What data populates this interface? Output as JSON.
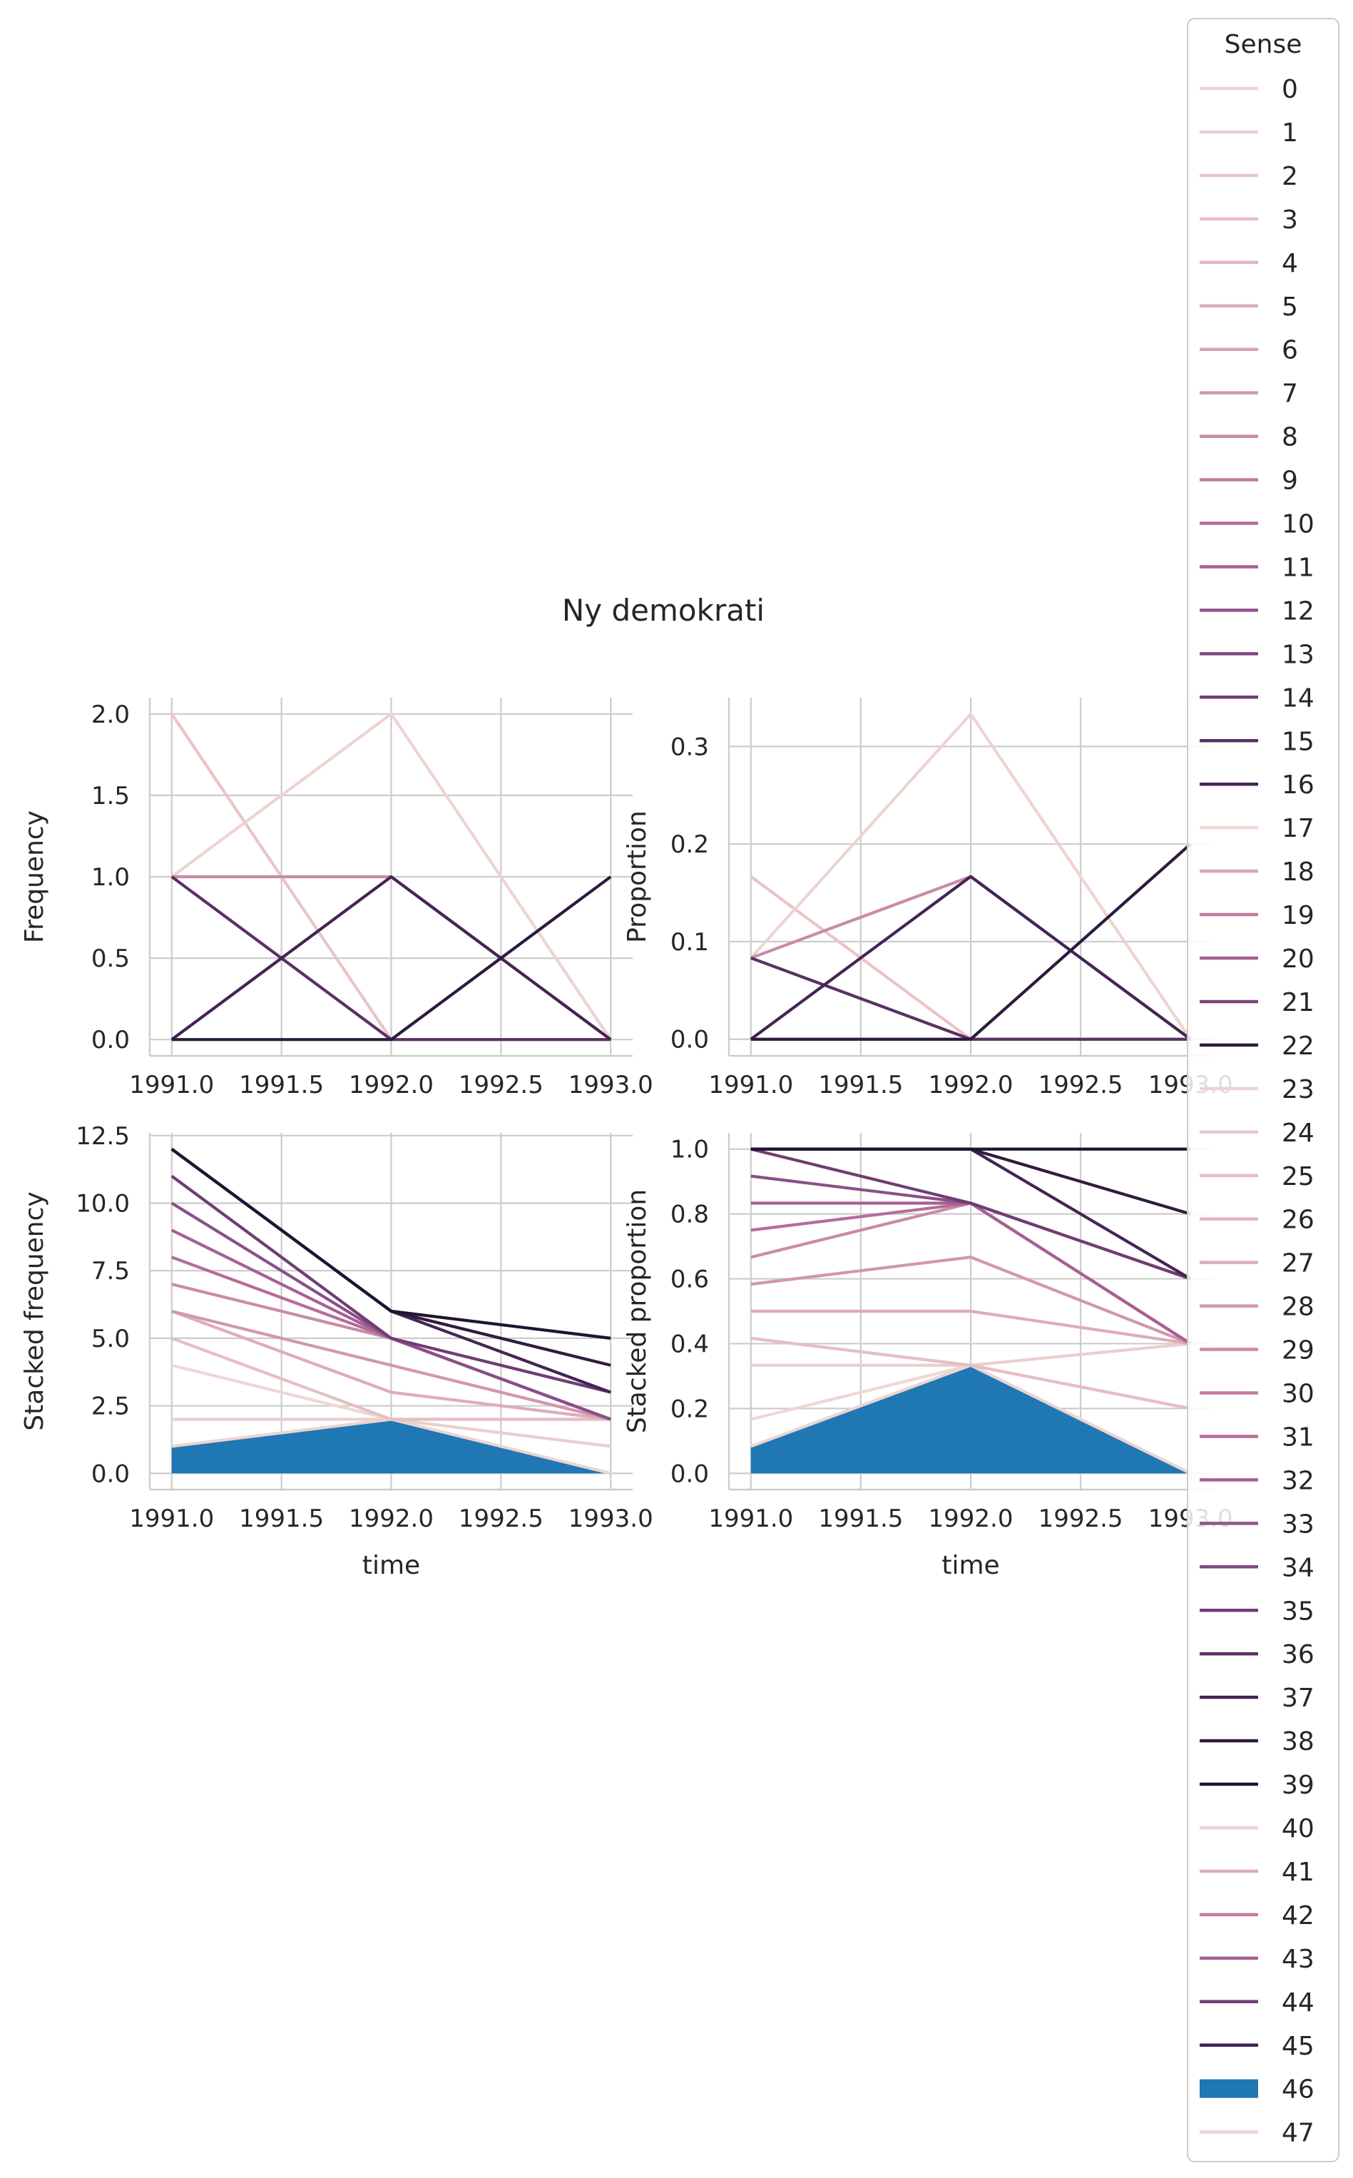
{
  "title": "Ny demokrati",
  "legend": {
    "title": "Sense",
    "entries": [
      "0",
      "1",
      "2",
      "3",
      "4",
      "5",
      "6",
      "7",
      "8",
      "9",
      "10",
      "11",
      "12",
      "13",
      "14",
      "15",
      "16",
      "17",
      "18",
      "19",
      "20",
      "21",
      "22",
      "23",
      "24",
      "25",
      "26",
      "27",
      "28",
      "29",
      "30",
      "31",
      "32",
      "33",
      "34",
      "35",
      "36",
      "37",
      "38",
      "39",
      "40",
      "41",
      "42",
      "43",
      "44",
      "45",
      "46",
      "47"
    ],
    "colors": [
      "#ecd4d0",
      "#ebcfcd",
      "#e9c8c8",
      "#e5bec3",
      "#e2b6bf",
      "#deacb9",
      "#d9a2b3",
      "#d396ad",
      "#cc8aa7",
      "#c27ca0",
      "#b56d99",
      "#a66093",
      "#95538a",
      "#83487f",
      "#6f3d73",
      "#5a3163",
      "#442552",
      "#efd7d3",
      "#d9a2b3",
      "#c27ca0",
      "#a66093",
      "#7a4579",
      "#301b3e",
      "#ecd4d0",
      "#e9c8c8",
      "#e5bec3",
      "#e2b6bf",
      "#deacb9",
      "#d396ad",
      "#cc8aa7",
      "#c27ca0",
      "#b56d99",
      "#a66093",
      "#95538a",
      "#83487f",
      "#6f3d73",
      "#5a3163",
      "#442552",
      "#301b3e",
      "#201432",
      "#ecd4d0",
      "#deacb9",
      "#c27ca0",
      "#a66093",
      "#6f3d73",
      "#3b2250",
      "#1f77b4",
      "#ecd4d0"
    ],
    "filled_entry": "46"
  },
  "chart_data": [
    {
      "type": "line",
      "ylabel": "Frequency",
      "xlabel": "",
      "x": [
        1991.0,
        1992.0,
        1993.0
      ],
      "xticks": [
        "1991.0",
        "1991.5",
        "1992.0",
        "1992.5",
        "1993.0"
      ],
      "yticks": [
        "0.0",
        "0.5",
        "1.0",
        "1.5",
        "2.0"
      ],
      "xlim": [
        1990.9,
        1993.1
      ],
      "ylim": [
        -0.1,
        2.1
      ],
      "series": [
        {
          "color": "#e8c5c5",
          "values": [
            2,
            0,
            0
          ]
        },
        {
          "color": "#ecd4d0",
          "values": [
            1,
            2,
            0
          ]
        },
        {
          "color": "#c98ba6",
          "values": [
            1,
            1,
            0
          ]
        },
        {
          "color": "#5a3163",
          "values": [
            1,
            0,
            0
          ]
        },
        {
          "color": "#442552",
          "values": [
            0,
            1,
            0
          ]
        },
        {
          "color": "#2d1a3e",
          "values": [
            0,
            0,
            1
          ]
        }
      ]
    },
    {
      "type": "line",
      "ylabel": "Proportion",
      "xlabel": "",
      "x": [
        1991.0,
        1992.0,
        1993.0
      ],
      "xticks": [
        "1991.0",
        "1991.5",
        "1992.0",
        "1992.5",
        "1993.0"
      ],
      "yticks": [
        "0.0",
        "0.1",
        "0.2",
        "0.3"
      ],
      "xlim": [
        1990.9,
        1993.1
      ],
      "ylim": [
        -0.017,
        0.35
      ],
      "series": [
        {
          "color": "#e8c5c5",
          "values": [
            0.1667,
            0,
            0
          ]
        },
        {
          "color": "#ecd4d0",
          "values": [
            0.0833,
            0.3333,
            0
          ]
        },
        {
          "color": "#c98ba6",
          "values": [
            0.0833,
            0.1667,
            0
          ]
        },
        {
          "color": "#5a3163",
          "values": [
            0.0833,
            0,
            0
          ]
        },
        {
          "color": "#442552",
          "values": [
            0,
            0.1667,
            0
          ]
        },
        {
          "color": "#2d1a3e",
          "values": [
            0,
            0,
            0.2
          ]
        }
      ]
    },
    {
      "type": "area",
      "ylabel": "Stacked frequency",
      "xlabel": "time",
      "x": [
        1991.0,
        1992.0,
        1993.0
      ],
      "xticks": [
        "1991.0",
        "1991.5",
        "1992.0",
        "1992.5",
        "1993.0"
      ],
      "yticks": [
        "0.0",
        "2.5",
        "5.0",
        "7.5",
        "10.0",
        "12.5"
      ],
      "xlim": [
        1990.9,
        1993.1
      ],
      "ylim": [
        -0.6,
        12.6
      ],
      "fill": {
        "color": "#1f77b4",
        "values": [
          1,
          2,
          0
        ]
      },
      "series": [
        {
          "color": "#ecd4d0",
          "values": [
            1,
            2,
            0
          ]
        },
        {
          "color": "#ebcfcd",
          "values": [
            2,
            2,
            1
          ]
        },
        {
          "color": "#efd7d3",
          "values": [
            4,
            2,
            2
          ]
        },
        {
          "color": "#e5bec3",
          "values": [
            5,
            2,
            2
          ]
        },
        {
          "color": "#deacb9",
          "values": [
            6,
            3,
            2
          ]
        },
        {
          "color": "#d396ad",
          "values": [
            6,
            4,
            2
          ]
        },
        {
          "color": "#c98ba6",
          "values": [
            7,
            5,
            2
          ]
        },
        {
          "color": "#b56d99",
          "values": [
            8,
            5,
            2
          ]
        },
        {
          "color": "#a66093",
          "values": [
            9,
            5,
            2
          ]
        },
        {
          "color": "#8a4f87",
          "values": [
            10,
            5,
            2
          ]
        },
        {
          "color": "#6f3d73",
          "values": [
            11,
            5,
            3
          ]
        },
        {
          "color": "#442552",
          "values": [
            12,
            6,
            3
          ]
        },
        {
          "color": "#301b3e",
          "values": [
            12,
            6,
            4
          ]
        },
        {
          "color": "#201432",
          "values": [
            12,
            6,
            5
          ]
        }
      ]
    },
    {
      "type": "area",
      "ylabel": "Stacked proportion",
      "xlabel": "time",
      "x": [
        1991.0,
        1992.0,
        1993.0
      ],
      "xticks": [
        "1991.0",
        "1991.5",
        "1992.0",
        "1992.5",
        "1993.0"
      ],
      "yticks": [
        "0.0",
        "0.2",
        "0.4",
        "0.6",
        "0.8",
        "1.0"
      ],
      "xlim": [
        1990.9,
        1993.1
      ],
      "ylim": [
        -0.05,
        1.05
      ],
      "fill": {
        "color": "#1f77b4",
        "values": [
          0.0833,
          0.3333,
          0
        ]
      },
      "series": [
        {
          "color": "#ecd4d0",
          "values": [
            0.0833,
            0.3333,
            0
          ]
        },
        {
          "color": "#efd7d3",
          "values": [
            0.1667,
            0.3333,
            0.2
          ]
        },
        {
          "color": "#ebcfcd",
          "values": [
            0.3333,
            0.3333,
            0.4
          ]
        },
        {
          "color": "#e5bec3",
          "values": [
            0.4167,
            0.3333,
            0.2
          ]
        },
        {
          "color": "#deacb9",
          "values": [
            0.5,
            0.5,
            0.4
          ]
        },
        {
          "color": "#d396ad",
          "values": [
            0.5833,
            0.6667,
            0.4
          ]
        },
        {
          "color": "#c98ba6",
          "values": [
            0.6667,
            0.8333,
            0.4
          ]
        },
        {
          "color": "#b56d99",
          "values": [
            0.75,
            0.8333,
            0.4
          ]
        },
        {
          "color": "#a66093",
          "values": [
            0.8333,
            0.8333,
            0.4
          ]
        },
        {
          "color": "#8a4f87",
          "values": [
            0.9167,
            0.8333,
            0.6
          ]
        },
        {
          "color": "#6f3d73",
          "values": [
            1.0,
            0.8333,
            0.6
          ]
        },
        {
          "color": "#442552",
          "values": [
            1.0,
            1.0,
            0.6
          ]
        },
        {
          "color": "#301b3e",
          "values": [
            1.0,
            1.0,
            0.8
          ]
        },
        {
          "color": "#201432",
          "values": [
            1.0,
            1.0,
            1.0
          ]
        }
      ]
    }
  ]
}
